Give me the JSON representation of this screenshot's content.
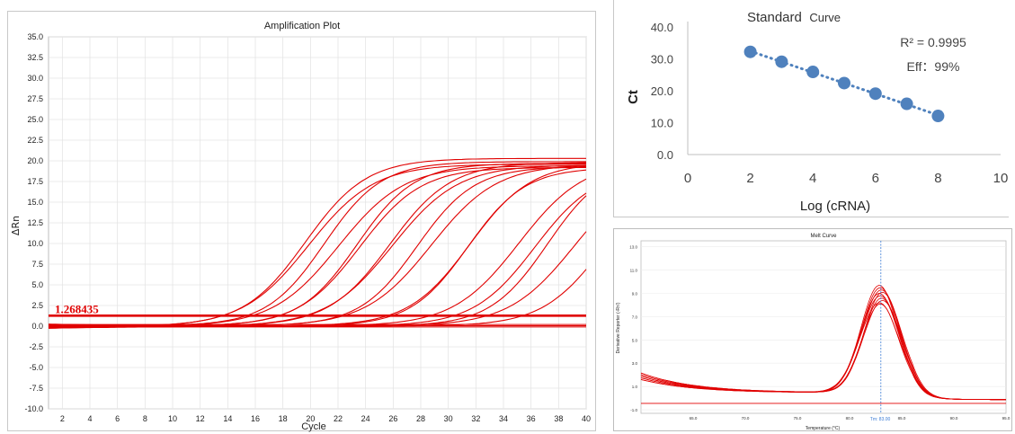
{
  "chart_data": [
    {
      "type": "line",
      "title": "Amplification Plot",
      "xlabel": "Cycle",
      "ylabel": "ΔRn",
      "xlim": [
        1,
        40
      ],
      "ylim": [
        -10,
        35
      ],
      "x_ticks": [
        "2",
        "4",
        "6",
        "8",
        "10",
        "12",
        "14",
        "16",
        "18",
        "20",
        "22",
        "24",
        "26",
        "28",
        "30",
        "32",
        "34",
        "36",
        "38",
        "40"
      ],
      "y_ticks": [
        "-10.0",
        "-7.5",
        "-5.0",
        "-2.5",
        "0.0",
        "2.5",
        "5.0",
        "7.5",
        "10.0",
        "12.5",
        "15.0",
        "17.5",
        "20.0",
        "22.5",
        "25.0",
        "27.5",
        "30.0",
        "32.5",
        "35.0"
      ],
      "grid": true,
      "threshold": {
        "value": 1.268435,
        "label": "1.268435",
        "color": "#e00000"
      },
      "curves": [
        {
          "ct": 13.5,
          "plateau": 19.6
        },
        {
          "ct": 13.6,
          "plateau": 20.3
        },
        {
          "ct": 15.4,
          "plateau": 19.9
        },
        {
          "ct": 15.7,
          "plateau": 19.4
        },
        {
          "ct": 17.7,
          "plateau": 19.2
        },
        {
          "ct": 17.8,
          "plateau": 19.7
        },
        {
          "ct": 19.6,
          "plateau": 19.5
        },
        {
          "ct": 19.8,
          "plateau": 19.8
        },
        {
          "ct": 22.2,
          "plateau": 19.3
        },
        {
          "ct": 22.4,
          "plateau": 19.6
        },
        {
          "ct": 25.6,
          "plateau": 19.8
        },
        {
          "ct": 25.9,
          "plateau": 19.2
        },
        {
          "ct": 28.7,
          "plateau": 20.1
        },
        {
          "ct": 30.4,
          "plateau": 19.1
        },
        {
          "ct": 31.6,
          "plateau": 19.9
        },
        {
          "ct": 32.8,
          "plateau": 19.4
        },
        {
          "ct": 35.4,
          "plateau": 19.0
        }
      ],
      "color": "#e00000"
    },
    {
      "type": "scatter",
      "title_main": "Standard",
      "title_sub": "Curve",
      "xlabel": "Log (cRNA)",
      "ylabel": "Ct",
      "xlim": [
        0,
        10
      ],
      "ylim": [
        0,
        40
      ],
      "x_ticks": [
        "0",
        "2",
        "4",
        "6",
        "8",
        "10"
      ],
      "y_ticks": [
        "0.0",
        "10.0",
        "20.0",
        "30.0",
        "40.0"
      ],
      "x": [
        2,
        3,
        4,
        5,
        6,
        7,
        8
      ],
      "y": [
        32.2,
        29.1,
        25.9,
        22.4,
        19.1,
        15.9,
        12.1
      ],
      "trendline": "dotted",
      "r2_label": "R² = 0.9995",
      "eff_label": "Eff：99%",
      "color": "#4f81bd"
    },
    {
      "type": "line",
      "title": "Melt Curve",
      "xlabel": "Temperature (°C)",
      "ylabel": "Derivative Reporter (-Rn')",
      "xlim": [
        60,
        95
      ],
      "ylim": [
        -1.3,
        13.5
      ],
      "x_ticks": [
        "65.0",
        "70.0",
        "75.0",
        "80.0",
        "85.0",
        "90.0",
        "95.0"
      ],
      "y_ticks": [
        "-1.0",
        "1.0",
        "3.0",
        "5.0",
        "7.0",
        "9.0",
        "11.0",
        "13.0"
      ],
      "tm_label": "Tm: 83.00",
      "tm": 83.0,
      "peaks": [
        9.2,
        9.0,
        8.8,
        8.6,
        8.5,
        8.3,
        8.1,
        7.9,
        7.7,
        7.6
      ],
      "color": "#e00000"
    }
  ]
}
